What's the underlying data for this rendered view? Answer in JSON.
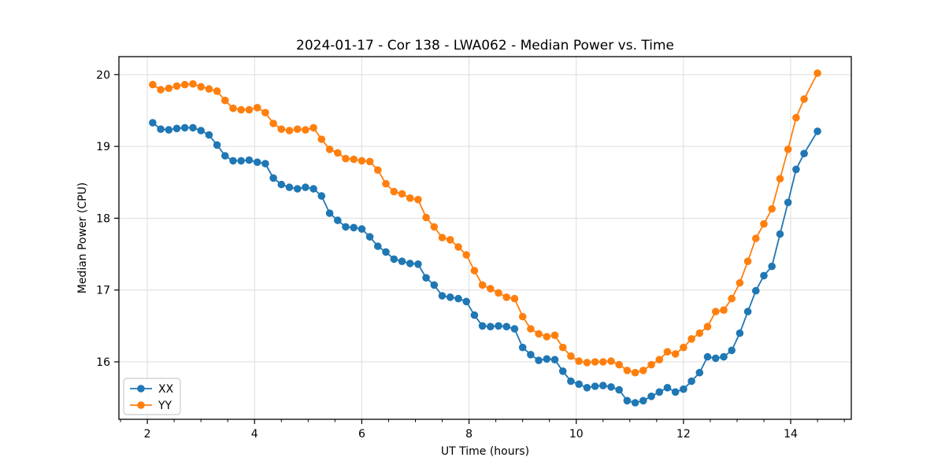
{
  "figure": {
    "background": "#ffffff",
    "spine_color": "#000000",
    "text_color": "#000000"
  },
  "chart_data": {
    "type": "line",
    "title": "2024-01-17 - Cor 138 - LWA062 - Median Power vs. Time",
    "xlabel": "UT Time (hours)",
    "ylabel": "Median Power (CPU)",
    "xlim": [
      1.47,
      15.13
    ],
    "ylim": [
      15.2,
      20.25
    ],
    "xticks": [
      2,
      4,
      6,
      8,
      10,
      12,
      14
    ],
    "yticks": [
      16,
      17,
      18,
      19,
      20
    ],
    "x_minor_step": 0.5,
    "grid": true,
    "grid_color": "#e0e0e0",
    "legend": {
      "position": "lower-left",
      "entries": [
        "XX",
        "YY"
      ]
    },
    "x": [
      2.1,
      2.25,
      2.4,
      2.55,
      2.7,
      2.85,
      3.0,
      3.15,
      3.3,
      3.45,
      3.6,
      3.75,
      3.9,
      4.05,
      4.2,
      4.35,
      4.5,
      4.65,
      4.8,
      4.95,
      5.1,
      5.25,
      5.4,
      5.55,
      5.7,
      5.85,
      6.0,
      6.15,
      6.3,
      6.45,
      6.6,
      6.75,
      6.9,
      7.05,
      7.2,
      7.35,
      7.5,
      7.65,
      7.8,
      7.95,
      8.1,
      8.25,
      8.4,
      8.55,
      8.7,
      8.85,
      9.0,
      9.15,
      9.3,
      9.45,
      9.6,
      9.75,
      9.9,
      10.05,
      10.2,
      10.35,
      10.5,
      10.65,
      10.8,
      10.95,
      11.1,
      11.25,
      11.4,
      11.55,
      11.7,
      11.85,
      12.0,
      12.15,
      12.3,
      12.45,
      12.6,
      12.75,
      12.9,
      13.05,
      13.2,
      13.35,
      13.5,
      13.65,
      13.8,
      13.95,
      14.1,
      14.25,
      14.5
    ],
    "series": [
      {
        "name": "XX",
        "color": "#1f77b4",
        "marker": "circle",
        "values": [
          19.33,
          19.24,
          19.23,
          19.25,
          19.26,
          19.26,
          19.22,
          19.16,
          19.02,
          18.87,
          18.8,
          18.8,
          18.81,
          18.78,
          18.76,
          18.56,
          18.47,
          18.43,
          18.41,
          18.43,
          18.41,
          18.31,
          18.07,
          17.97,
          17.88,
          17.87,
          17.85,
          17.74,
          17.61,
          17.53,
          17.43,
          17.4,
          17.37,
          17.36,
          17.17,
          17.07,
          16.92,
          16.9,
          16.88,
          16.84,
          16.65,
          16.5,
          16.49,
          16.5,
          16.49,
          16.46,
          16.2,
          16.1,
          16.02,
          16.04,
          16.03,
          15.87,
          15.73,
          15.69,
          15.64,
          15.66,
          15.67,
          15.65,
          15.61,
          15.46,
          15.43,
          15.46,
          15.52,
          15.58,
          15.64,
          15.58,
          15.62,
          15.73,
          15.85,
          16.07,
          16.05,
          16.07,
          16.16,
          16.4,
          16.7,
          16.99,
          17.2,
          17.33,
          17.78,
          18.22,
          18.68,
          18.9,
          19.21
        ]
      },
      {
        "name": "YY",
        "color": "#ff7f0e",
        "marker": "circle",
        "values": [
          19.86,
          19.79,
          19.81,
          19.84,
          19.86,
          19.87,
          19.83,
          19.8,
          19.77,
          19.64,
          19.53,
          19.51,
          19.51,
          19.54,
          19.47,
          19.32,
          19.24,
          19.22,
          19.24,
          19.23,
          19.26,
          19.1,
          18.96,
          18.91,
          18.83,
          18.82,
          18.8,
          18.79,
          18.67,
          18.48,
          18.37,
          18.34,
          18.28,
          18.26,
          18.01,
          17.88,
          17.73,
          17.7,
          17.6,
          17.49,
          17.27,
          17.07,
          17.02,
          16.96,
          16.9,
          16.88,
          16.63,
          16.46,
          16.39,
          16.35,
          16.37,
          16.2,
          16.08,
          16.01,
          15.99,
          16.0,
          16.0,
          16.01,
          15.96,
          15.88,
          15.85,
          15.88,
          15.96,
          16.03,
          16.14,
          16.11,
          16.2,
          16.32,
          16.4,
          16.49,
          16.7,
          16.72,
          16.88,
          17.1,
          17.4,
          17.72,
          17.92,
          18.13,
          18.55,
          18.96,
          19.4,
          19.66,
          20.02
        ]
      }
    ]
  }
}
